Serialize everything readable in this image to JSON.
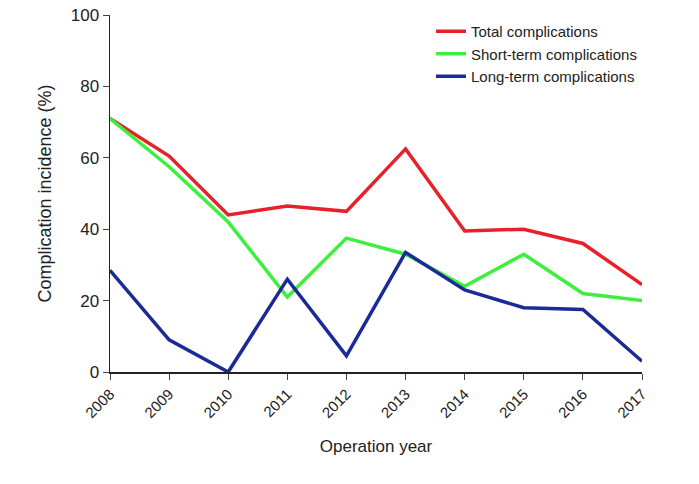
{
  "chart_data": {
    "type": "line",
    "x_label": "Operation year",
    "y_label": "Complication incidence (%)",
    "categories": [
      "2008",
      "2009",
      "2010",
      "2011",
      "2012",
      "2013",
      "2014",
      "2015",
      "2016",
      "2017"
    ],
    "series": [
      {
        "name": "Total complications",
        "color": "#e8202a",
        "values": [
          71,
          60.5,
          44,
          46.5,
          45,
          62.5,
          39.5,
          40,
          36,
          24.5
        ]
      },
      {
        "name": "Short-term complications",
        "color": "#3ef03e",
        "values": [
          71,
          57.5,
          42,
          21,
          37.5,
          33,
          24,
          33,
          22,
          20
        ]
      },
      {
        "name": "Long-term complications",
        "color": "#1a2a96",
        "values": [
          28.5,
          9,
          0,
          26,
          4.5,
          33.5,
          23,
          18,
          17.5,
          3
        ]
      }
    ],
    "ylim": [
      0,
      100
    ],
    "yticks": [
      0,
      20,
      40,
      60,
      80,
      100
    ],
    "grid": false,
    "legend": "top right"
  }
}
